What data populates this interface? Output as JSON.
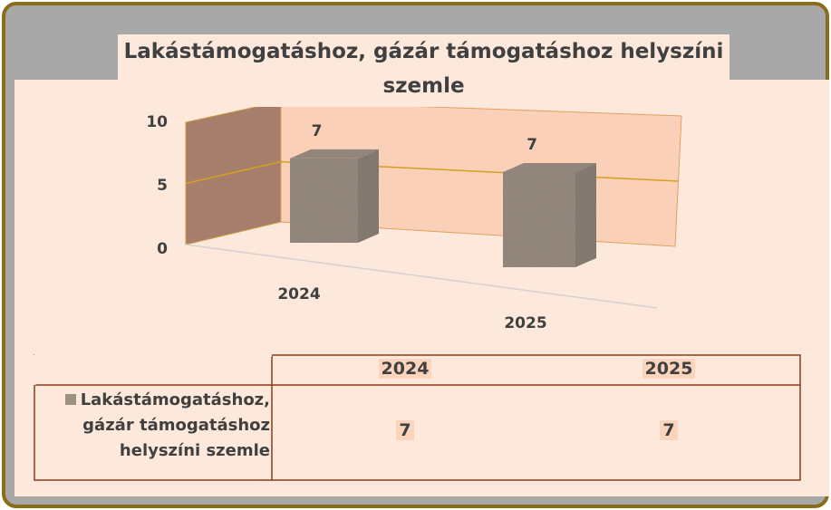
{
  "chart_data": {
    "type": "bar",
    "title": "Lakástámogatáshoz, gázár támogatáshoz helyszíni szemle",
    "categories": [
      "2024",
      "2025"
    ],
    "series": [
      {
        "name": "Lakástámogatáshoz, gázár támogatáshoz helyszíni szemle",
        "color": "#9c8f84",
        "values": [
          7,
          7
        ]
      }
    ],
    "ylim": [
      0,
      10
    ],
    "yticks": [
      0,
      5,
      10
    ],
    "grid": true,
    "data_table": true
  }
}
